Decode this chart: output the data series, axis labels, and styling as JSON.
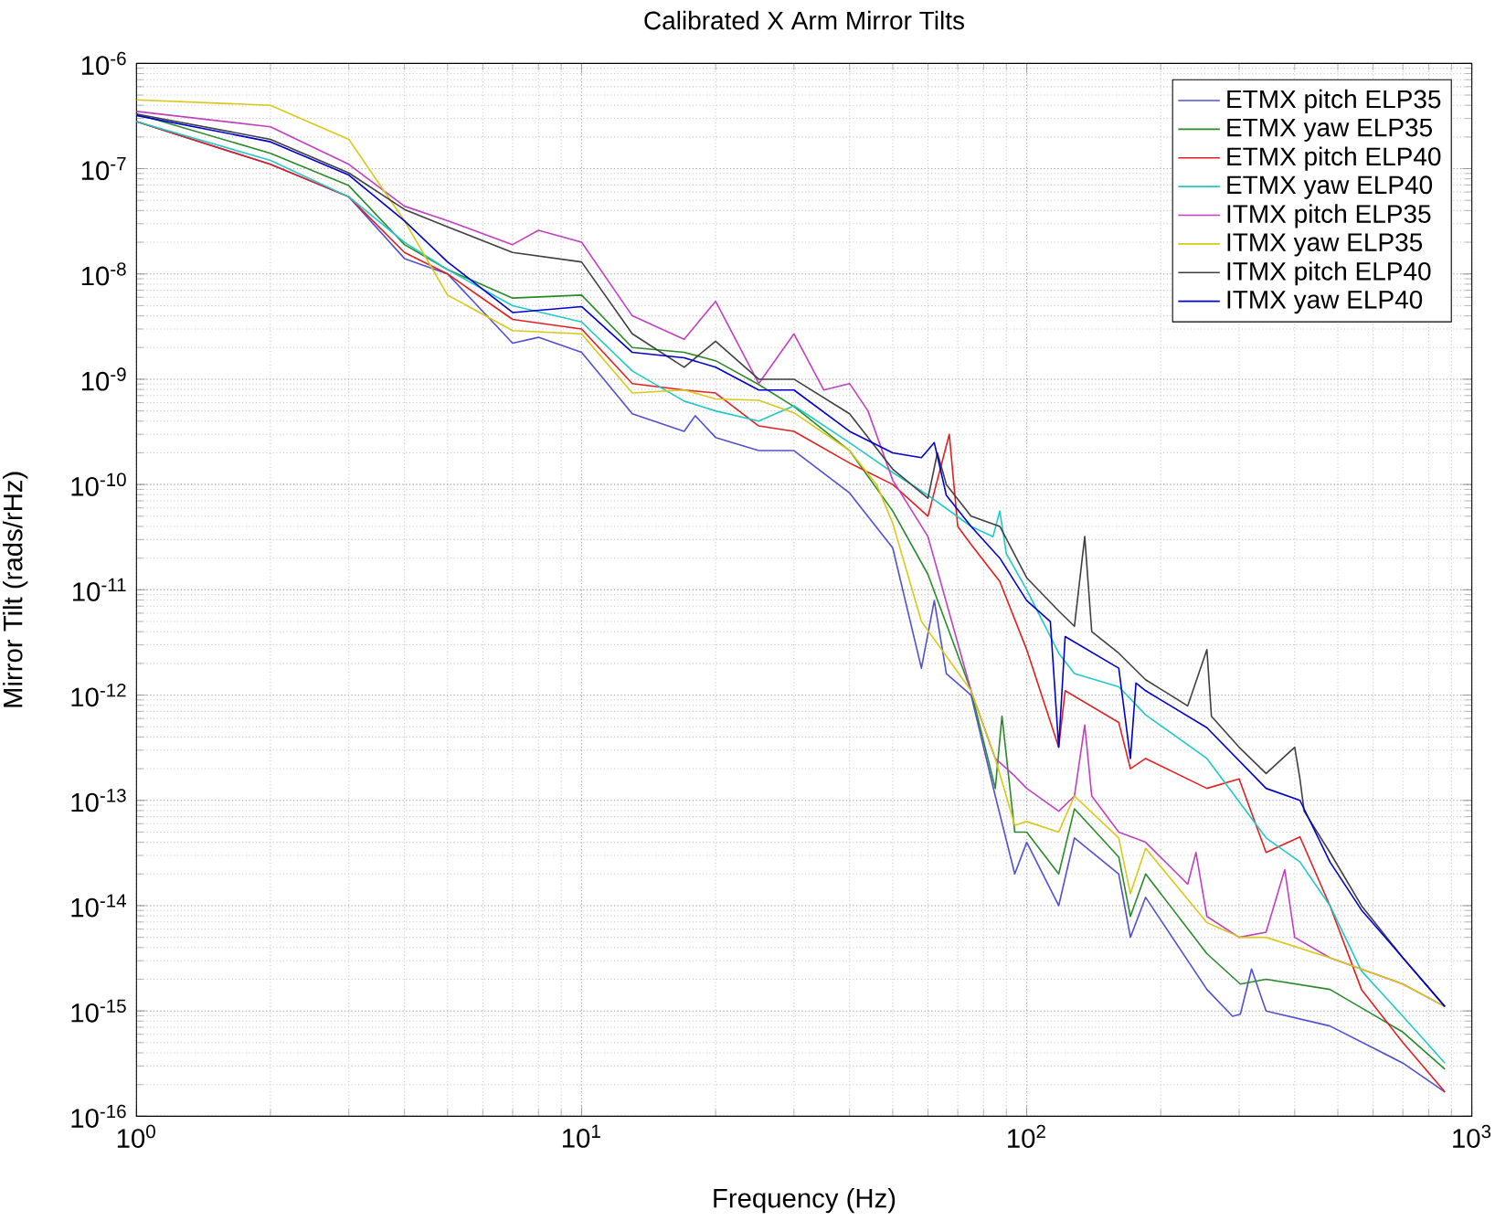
{
  "chart_data": {
    "type": "line",
    "title": "Calibrated X Arm Mirror Tilts",
    "xlabel": "Frequency (Hz)",
    "ylabel": "Mirror Tilt (rads/rHz)",
    "log": "xy",
    "grid": true,
    "legend": "top right",
    "marker": "none",
    "line_style": "solid",
    "xlim": [
      1,
      1000
    ],
    "ylim": [
      1e-16,
      1e-06
    ],
    "xticks": [
      {
        "value": 1,
        "label": "10$^{0}$"
      },
      {
        "value": 10,
        "label": "10$^{1}$"
      },
      {
        "value": 100,
        "label": "10$^{2}$"
      },
      {
        "value": 1000,
        "label": "10$^{3}$"
      }
    ],
    "yticks": [
      {
        "value": 1e-16,
        "label": "10$^{-16}$"
      },
      {
        "value": 1e-15,
        "label": "10$^{-15}$"
      },
      {
        "value": 1e-14,
        "label": "10$^{-14}$"
      },
      {
        "value": 1e-13,
        "label": "10$^{-13}$"
      },
      {
        "value": 1e-12,
        "label": "10$^{-12}$"
      },
      {
        "value": 1e-11,
        "label": "10$^{-11}$"
      },
      {
        "value": 1e-10,
        "label": "10$^{-10}$"
      },
      {
        "value": 1e-09,
        "label": "10$^{-9}$"
      },
      {
        "value": 1e-08,
        "label": "10$^{-8}$"
      },
      {
        "value": 1e-07,
        "label": "10$^{-7}$"
      },
      {
        "value": 1e-06,
        "label": "10$^{-6}$"
      }
    ],
    "series": [
      {
        "name": "ETMX pitch ELP35",
        "color": "#5050d0",
        "x": [
          1,
          2,
          3,
          4,
          5,
          7,
          8,
          10,
          13,
          17,
          18,
          20,
          25,
          30,
          40,
          50,
          58,
          62,
          66,
          75,
          85,
          94,
          100,
          118,
          128,
          161,
          171,
          185,
          254,
          290,
          302,
          320,
          345,
          480,
          700,
          870
        ],
        "values": [
          2.8e-07,
          1.1e-07,
          5.4e-08,
          1.4e-08,
          1e-08,
          2.2e-09,
          2.5e-09,
          1.8e-09,
          4.7e-10,
          3.2e-10,
          4.5e-10,
          2.8e-10,
          2.1e-10,
          2.1e-10,
          8.3e-11,
          2.5e-11,
          1.8e-12,
          7.9e-12,
          1.6e-12,
          1e-12,
          1.1e-13,
          2e-14,
          4e-14,
          1e-14,
          4.4e-14,
          2e-14,
          5e-15,
          1.2e-14,
          1.6e-15,
          8.9e-16,
          9.3e-16,
          2.5e-15,
          1e-15,
          7.2e-16,
          3.2e-16,
          1.7e-16
        ]
      },
      {
        "name": "ETMX yaw ELP35",
        "color": "#2a8a2a",
        "x": [
          1,
          2,
          3,
          4,
          5,
          7,
          10,
          13,
          17,
          20,
          25,
          30,
          40,
          50,
          60,
          75,
          85,
          88,
          94,
          100,
          118,
          128,
          161,
          171,
          185,
          254,
          302,
          345,
          480,
          700,
          870
        ],
        "values": [
          3.3e-07,
          1.4e-07,
          6.9e-08,
          1.9e-08,
          1.1e-08,
          5.9e-09,
          6.3e-09,
          2e-09,
          1.8e-09,
          1.5e-09,
          8.9e-10,
          5.5e-10,
          2.1e-10,
          5.6e-11,
          1.4e-11,
          1.1e-12,
          1.3e-13,
          6.3e-13,
          5e-14,
          5e-14,
          2e-14,
          8.3e-14,
          2.9e-14,
          7.9e-15,
          2e-14,
          3.5e-15,
          1.8e-15,
          2e-15,
          1.6e-15,
          6.3e-16,
          2.8e-16
        ]
      },
      {
        "name": "ETMX pitch ELP40",
        "color": "#e02020",
        "x": [
          1,
          2,
          3,
          4,
          5,
          7,
          10,
          13,
          17,
          20,
          25,
          30,
          40,
          50,
          60,
          67,
          70,
          75,
          87,
          100,
          118,
          122,
          161,
          171,
          185,
          254,
          300,
          345,
          411,
          480,
          565,
          700,
          870
        ],
        "values": [
          2.8e-07,
          1.1e-07,
          5.4e-08,
          1.6e-08,
          1e-08,
          3.7e-09,
          3e-09,
          9.1e-10,
          7.9e-10,
          7.4e-10,
          3.6e-10,
          3.2e-10,
          1.6e-10,
          1e-10,
          5e-11,
          3e-10,
          4e-11,
          2.7e-11,
          1.2e-11,
          2.7e-12,
          3.2e-13,
          1.1e-12,
          5.5e-13,
          2e-13,
          2.5e-13,
          1.3e-13,
          1.6e-13,
          3.2e-14,
          4.5e-14,
          1e-14,
          1.6e-15,
          5e-16,
          1.7e-16
        ]
      },
      {
        "name": "ETMX yaw ELP40",
        "color": "#20c8c8",
        "x": [
          1,
          2,
          3,
          4,
          5,
          7,
          10,
          13,
          17,
          20,
          25,
          30,
          40,
          50,
          60,
          75,
          84,
          87,
          90,
          100,
          118,
          128,
          161,
          185,
          254,
          345,
          411,
          480,
          565,
          700,
          870
        ],
        "values": [
          2.8e-07,
          1.2e-07,
          5.4e-08,
          2e-08,
          1.1e-08,
          5e-09,
          3.5e-09,
          1.2e-09,
          6.2e-10,
          5e-10,
          4e-10,
          5.6e-10,
          2.5e-10,
          1.3e-10,
          7.9e-11,
          4e-11,
          3.2e-11,
          5.6e-11,
          2.2e-11,
          1e-11,
          2.5e-12,
          1.6e-12,
          1.2e-12,
          6.5e-13,
          2.5e-13,
          4.4e-14,
          2.6e-14,
          1e-14,
          2.4e-15,
          8.9e-16,
          3.2e-16
        ]
      },
      {
        "name": "ITMX pitch ELP35",
        "color": "#c040c0",
        "x": [
          1,
          2,
          3,
          4,
          5,
          7,
          8,
          10,
          13,
          17,
          20,
          25,
          30,
          35,
          40,
          44,
          50,
          60,
          75,
          85,
          94,
          100,
          118,
          128,
          135,
          140,
          161,
          185,
          230,
          240,
          254,
          300,
          345,
          380,
          400,
          480,
          700,
          870
        ],
        "values": [
          3.5e-07,
          2.5e-07,
          1.1e-07,
          4.4e-08,
          3.2e-08,
          1.9e-08,
          2.6e-08,
          2e-08,
          4e-09,
          2.4e-09,
          5.5e-09,
          9.1e-10,
          2.7e-09,
          7.9e-10,
          9.1e-10,
          5e-10,
          1.1e-10,
          3.2e-11,
          1.1e-12,
          2.5e-13,
          1.7e-13,
          1.3e-13,
          7.9e-14,
          1.1e-13,
          5.2e-13,
          1.1e-13,
          5e-14,
          4e-14,
          1.6e-14,
          3.2e-14,
          7.9e-15,
          5e-15,
          5.6e-15,
          2.2e-14,
          5e-15,
          3.2e-15,
          1.8e-15,
          1.1e-15
        ]
      },
      {
        "name": "ITMX yaw ELP35",
        "color": "#d8c818",
        "x": [
          1,
          2,
          3,
          4,
          5,
          7,
          10,
          13,
          17,
          20,
          25,
          30,
          40,
          46,
          50,
          58,
          75,
          85,
          94,
          100,
          118,
          128,
          161,
          171,
          185,
          254,
          302,
          345,
          480,
          700,
          870
        ],
        "values": [
          4.5e-07,
          4e-07,
          1.9e-07,
          3.2e-08,
          6.3e-09,
          2.9e-09,
          2.7e-09,
          7.4e-10,
          7.9e-10,
          6.5e-10,
          6.3e-10,
          4.8e-10,
          2.1e-10,
          1e-10,
          4.3e-11,
          5e-12,
          1.1e-12,
          2.5e-13,
          5.8e-14,
          6.3e-14,
          5e-14,
          1.1e-13,
          4.4e-14,
          1.3e-14,
          3.5e-14,
          6.9e-15,
          5e-15,
          5e-15,
          3.2e-15,
          1.8e-15,
          1.1e-15
        ]
      },
      {
        "name": "ITMX pitch ELP40",
        "color": "#404040",
        "x": [
          1,
          2,
          3,
          4,
          5,
          7,
          10,
          13,
          17,
          20,
          25,
          30,
          40,
          50,
          60,
          63,
          66,
          75,
          87,
          100,
          118,
          128,
          135,
          140,
          161,
          185,
          230,
          254,
          260,
          300,
          345,
          400,
          411,
          420,
          480,
          565,
          700,
          870
        ],
        "values": [
          3.3e-07,
          1.9e-07,
          9.1e-08,
          4.1e-08,
          2.8e-08,
          1.6e-08,
          1.3e-08,
          2.7e-09,
          1.3e-09,
          2.3e-09,
          1e-09,
          1e-09,
          4.7e-10,
          1.4e-10,
          7.4e-11,
          2e-10,
          1e-10,
          5e-11,
          4e-11,
          1.3e-11,
          6.3e-12,
          4.5e-12,
          3.2e-11,
          4e-12,
          2.5e-12,
          1.4e-12,
          7.9e-13,
          2.7e-12,
          6.3e-13,
          3.2e-13,
          1.8e-13,
          3.2e-13,
          1.6e-13,
          7.9e-14,
          3.2e-14,
          1e-14,
          3.2e-15,
          1.1e-15
        ]
      },
      {
        "name": "ITMX yaw ELP40",
        "color": "#0000cc",
        "x": [
          1,
          2,
          3,
          4,
          5,
          7,
          10,
          13,
          17,
          20,
          25,
          30,
          40,
          50,
          58,
          62,
          66,
          75,
          87,
          100,
          113,
          118,
          122,
          161,
          171,
          176,
          185,
          254,
          345,
          411,
          480,
          565,
          700,
          870
        ],
        "values": [
          3.2e-07,
          1.8e-07,
          8.7e-08,
          3.2e-08,
          1.3e-08,
          4.3e-09,
          4.9e-09,
          1.8e-09,
          1.6e-09,
          1.3e-09,
          7.9e-10,
          7.9e-10,
          3.2e-10,
          2e-10,
          1.8e-10,
          2.5e-10,
          7.9e-11,
          4e-11,
          2e-11,
          7.9e-12,
          5e-12,
          3.2e-13,
          3.6e-12,
          1.8e-12,
          2.5e-13,
          1.3e-12,
          1.1e-12,
          4.9e-13,
          1.3e-13,
          1e-13,
          2.6e-14,
          9.1e-15,
          3.2e-15,
          1.1e-15
        ]
      }
    ]
  }
}
